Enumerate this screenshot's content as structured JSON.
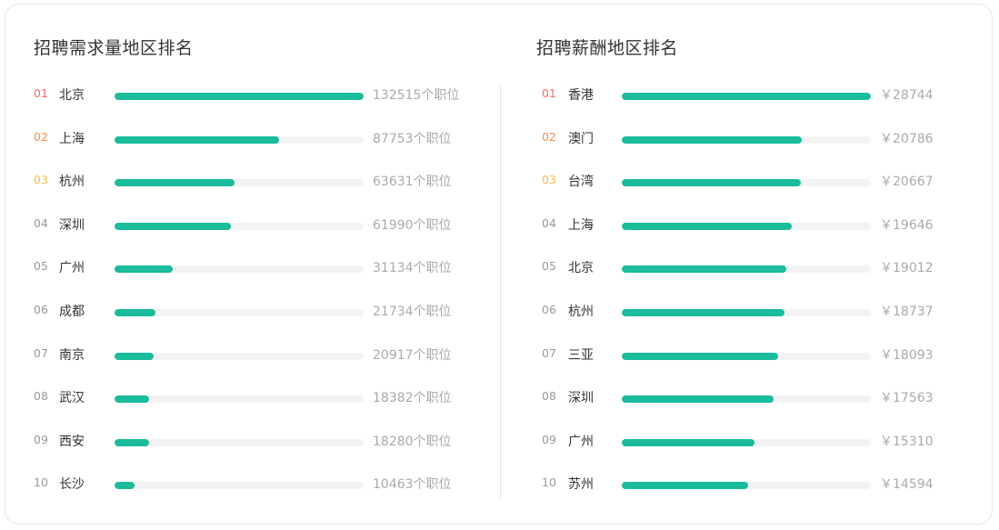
{
  "rank_colors": {
    "1": "#f56c6c",
    "2": "#f0904a",
    "3": "#f5bd4a",
    "default": "#999999"
  },
  "bar_color": "#1abc9c",
  "track_color": "#f3f3f3",
  "chart_data": [
    {
      "type": "bar",
      "orientation": "horizontal",
      "title": "招聘需求量地区排名",
      "ranks": [
        "01",
        "02",
        "03",
        "04",
        "05",
        "06",
        "07",
        "08",
        "09",
        "10"
      ],
      "categories": [
        "北京",
        "上海",
        "杭州",
        "深圳",
        "广州",
        "成都",
        "南京",
        "武汉",
        "西安",
        "长沙"
      ],
      "values": [
        132515,
        87753,
        63631,
        61990,
        31134,
        21734,
        20917,
        18382,
        18280,
        10463
      ],
      "value_labels": [
        "132515个职位",
        "87753个职位",
        "63631个职位",
        "61990个职位",
        "31134个职位",
        "21734个职位",
        "20917个职位",
        "18382个职位",
        "18280个职位",
        "10463个职位"
      ],
      "xlim": [
        0,
        132515
      ]
    },
    {
      "type": "bar",
      "orientation": "horizontal",
      "title": "招聘薪酬地区排名",
      "ranks": [
        "01",
        "02",
        "03",
        "04",
        "05",
        "06",
        "07",
        "08",
        "09",
        "10"
      ],
      "categories": [
        "香港",
        "澳门",
        "台湾",
        "上海",
        "北京",
        "杭州",
        "三亚",
        "深圳",
        "广州",
        "苏州"
      ],
      "values": [
        28744,
        20786,
        20667,
        19646,
        19012,
        18737,
        18093,
        17563,
        15310,
        14594
      ],
      "value_labels": [
        "￥28744",
        "￥20786",
        "￥20667",
        "￥19646",
        "￥19012",
        "￥18737",
        "￥18093",
        "￥17563",
        "￥15310",
        "￥14594"
      ],
      "xlim": [
        0,
        28744
      ]
    }
  ]
}
